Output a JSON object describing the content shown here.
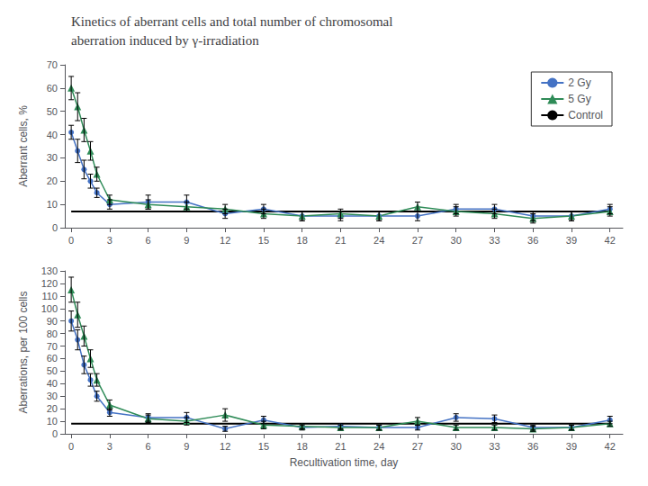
{
  "chart_data": [
    {
      "type": "line",
      "title": "Kinetics of aberrant cells and total number of chromosomal\naberration induced by γ-irradiation",
      "ylabel": "Aberrant cells, %",
      "x": [
        0,
        0.5,
        1,
        1.5,
        2,
        3,
        6,
        9,
        12,
        15,
        18,
        21,
        24,
        27,
        30,
        33,
        36,
        39,
        42
      ],
      "xlim": [
        -0.5,
        43
      ],
      "xticks": [
        0,
        3,
        6,
        9,
        12,
        15,
        18,
        21,
        24,
        27,
        30,
        33,
        36,
        39,
        42
      ],
      "ylim": [
        0,
        70
      ],
      "yticks": [
        0,
        10,
        20,
        30,
        40,
        50,
        60,
        70
      ],
      "grid": false,
      "legend": "upper right",
      "series": [
        {
          "name": "2 Gy",
          "color": "#4472C4",
          "marker": "circle",
          "line_style": "solid",
          "values": [
            41,
            33,
            25,
            20,
            15,
            10,
            11,
            11,
            6,
            8,
            5,
            5,
            5,
            5,
            8,
            8,
            5,
            5,
            8
          ],
          "yerr": [
            3,
            5,
            4,
            3,
            2,
            2,
            3,
            3,
            2,
            2,
            2,
            2,
            2,
            2,
            2,
            2,
            2,
            2,
            2
          ]
        },
        {
          "name": "5 Gy",
          "color": "#2E8B57",
          "marker": "triangle",
          "line_style": "solid",
          "values": [
            60,
            52,
            42,
            33,
            23,
            12,
            10,
            9,
            8,
            6,
            5,
            6,
            5,
            9,
            7,
            6,
            4,
            5,
            7
          ],
          "yerr": [
            5,
            6,
            5,
            4,
            3,
            2,
            2,
            2,
            2,
            2,
            2,
            2,
            2,
            2,
            2,
            2,
            2,
            2,
            2
          ]
        },
        {
          "name": "Control",
          "color": "#000000",
          "marker": "none",
          "line_style": "solid",
          "values": [
            7,
            7,
            7,
            7,
            7,
            7,
            7,
            7,
            7,
            7,
            7,
            7,
            7,
            7,
            7,
            7,
            7,
            7,
            7
          ]
        }
      ]
    },
    {
      "type": "line",
      "xlabel": "Recultivation time, day",
      "ylabel": "Aberrations, per 100 cells",
      "x": [
        0,
        0.5,
        1,
        1.5,
        2,
        3,
        6,
        9,
        12,
        15,
        18,
        21,
        24,
        27,
        30,
        33,
        36,
        39,
        42
      ],
      "xlim": [
        -0.5,
        43
      ],
      "xticks": [
        0,
        3,
        6,
        9,
        12,
        15,
        18,
        21,
        24,
        27,
        30,
        33,
        36,
        39,
        42
      ],
      "ylim": [
        0,
        130
      ],
      "yticks": [
        0,
        10,
        20,
        30,
        40,
        50,
        60,
        70,
        80,
        90,
        100,
        110,
        120,
        130
      ],
      "grid": false,
      "series": [
        {
          "color": "#4472C4",
          "marker": "circle",
          "line_style": "solid",
          "values": [
            90,
            75,
            55,
            43,
            30,
            17,
            13,
            13,
            4,
            11,
            5,
            6,
            5,
            5,
            13,
            12,
            5,
            5,
            11
          ],
          "yerr": [
            8,
            8,
            7,
            5,
            4,
            3,
            3,
            4,
            2,
            3,
            2,
            2,
            2,
            2,
            3,
            3,
            2,
            2,
            3
          ]
        },
        {
          "color": "#2E8B57",
          "marker": "triangle",
          "line_style": "solid",
          "values": [
            115,
            95,
            78,
            60,
            43,
            23,
            12,
            10,
            15,
            7,
            6,
            5,
            5,
            10,
            5,
            5,
            4,
            5,
            8
          ],
          "yerr": [
            10,
            10,
            8,
            7,
            5,
            4,
            3,
            3,
            5,
            3,
            2,
            2,
            2,
            3,
            2,
            2,
            2,
            2,
            2
          ]
        },
        {
          "color": "#000000",
          "marker": "none",
          "line_style": "solid",
          "values": [
            8,
            8,
            8,
            8,
            8,
            8,
            8,
            8,
            8,
            8,
            8,
            8,
            8,
            8,
            8,
            8,
            8,
            8,
            8
          ]
        }
      ]
    }
  ]
}
